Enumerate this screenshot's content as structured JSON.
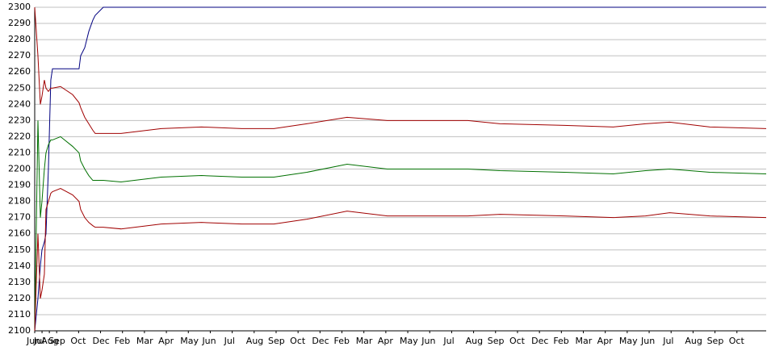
{
  "chart_data": {
    "type": "line",
    "x": [
      0,
      0.44,
      0.77,
      0.99,
      1.32,
      1.54,
      1.87,
      2.2,
      2.43,
      3.53,
      5.18,
      6.06,
      6.28,
      6.84,
      7.39,
      7.94,
      8.27,
      9.37,
      11.8,
      17.3,
      22.8,
      28.3,
      32.7,
      37.2,
      42.7,
      48.2,
      59.2,
      63.6,
      72.4,
      79.1,
      83.5,
      86.8,
      92.3,
      100
    ],
    "series": [
      {
        "color": "#000080",
        "values": [
          2100,
          2120,
          2140,
          2150,
          2155,
          2160,
          2200,
          2255,
          2262,
          2262,
          2262,
          2262,
          2270,
          2275,
          2285,
          2292,
          2295,
          2300,
          2300,
          2300,
          2300,
          2300,
          2300,
          2300,
          2300,
          2300,
          2300,
          2300,
          2300,
          2300,
          2300,
          2300,
          2300,
          2300
        ]
      },
      {
        "color": "#a00000",
        "values": [
          2300,
          2270,
          2240,
          2245,
          2255,
          2250,
          2248,
          2250,
          2250,
          2251,
          2246,
          2241,
          2238,
          2232,
          2228,
          2224,
          2222,
          2222,
          2222,
          2225,
          2226,
          2225,
          2225,
          2228,
          2232,
          2230,
          2230,
          2228,
          2227,
          2226,
          2228,
          2229,
          2226,
          2225
        ]
      },
      {
        "color": "#007000",
        "values": [
          2100,
          2230,
          2170,
          2180,
          2200,
          2210,
          2215,
          2218,
          2218,
          2220,
          2214,
          2210,
          2205,
          2200,
          2196,
          2193,
          2193,
          2193,
          2192,
          2195,
          2196,
          2195,
          2195,
          2198,
          2203,
          2200,
          2200,
          2199,
          2198,
          2197,
          2199,
          2200,
          2198,
          2197
        ]
      },
      {
        "color": "#a00000",
        "values": [
          2100,
          2160,
          2120,
          2125,
          2135,
          2175,
          2180,
          2185,
          2186,
          2188,
          2184,
          2180,
          2175,
          2170,
          2167,
          2165,
          2164,
          2164,
          2163,
          2166,
          2167,
          2166,
          2166,
          2169,
          2174,
          2171,
          2171,
          2172,
          2171,
          2170,
          2171,
          2173,
          2171,
          2170
        ]
      }
    ],
    "xlim": [
      0,
      100
    ],
    "xticks": [
      {
        "value": 0,
        "label": "Jun"
      },
      {
        "value": 1,
        "label": "Jul"
      },
      {
        "value": 2,
        "label": "Aug"
      },
      {
        "value": 3,
        "label": "Sep"
      },
      {
        "value": 6,
        "label": "Oct"
      },
      {
        "value": 9,
        "label": "Dec"
      },
      {
        "value": 12,
        "label": "Feb"
      },
      {
        "value": 15,
        "label": "Mar"
      },
      {
        "value": 18,
        "label": "Apr"
      },
      {
        "value": 21,
        "label": "May"
      },
      {
        "value": 24,
        "label": "Jun"
      },
      {
        "value": 27,
        "label": "Jul"
      },
      {
        "value": 30,
        "label": "Aug"
      },
      {
        "value": 33,
        "label": "Sep"
      },
      {
        "value": 36,
        "label": "Oct"
      },
      {
        "value": 39,
        "label": "Dec"
      },
      {
        "value": 42,
        "label": "Feb"
      },
      {
        "value": 45,
        "label": "Mar"
      },
      {
        "value": 48,
        "label": "Apr"
      },
      {
        "value": 51,
        "label": "May"
      },
      {
        "value": 54,
        "label": "Jun"
      },
      {
        "value": 57,
        "label": "Jul"
      },
      {
        "value": 60,
        "label": "Aug"
      },
      {
        "value": 63,
        "label": "Sep"
      },
      {
        "value": 66,
        "label": "Oct"
      },
      {
        "value": 69,
        "label": "Dec"
      },
      {
        "value": 72,
        "label": "Feb"
      },
      {
        "value": 75,
        "label": "Mar"
      },
      {
        "value": 78,
        "label": "Apr"
      },
      {
        "value": 81,
        "label": "May"
      },
      {
        "value": 84,
        "label": "Jun"
      },
      {
        "value": 87,
        "label": "Jul"
      },
      {
        "value": 90,
        "label": "Aug"
      },
      {
        "value": 93,
        "label": "Sep"
      },
      {
        "value": 96,
        "label": "Oct"
      }
    ],
    "ylim": [
      2100,
      2300
    ],
    "yticks": [
      2100,
      2110,
      2120,
      2130,
      2140,
      2150,
      2160,
      2170,
      2180,
      2190,
      2200,
      2210,
      2220,
      2230,
      2240,
      2250,
      2260,
      2270,
      2280,
      2290,
      2300
    ],
    "grid": true
  }
}
